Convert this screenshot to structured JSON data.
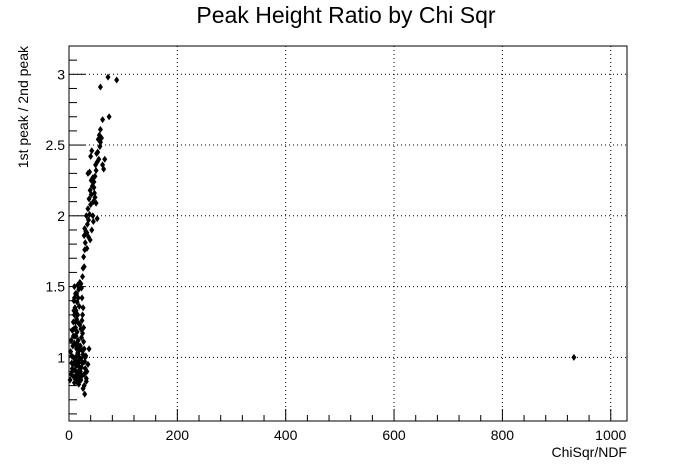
{
  "chart_data": {
    "type": "scatter",
    "title": "Peak Height Ratio by Chi Sqr",
    "xlabel": "ChiSqr/NDF",
    "ylabel": "1st peak / 2nd peak",
    "xlim": [
      0,
      1030
    ],
    "ylim": [
      0.55,
      3.2
    ],
    "grid": true,
    "grid_style": "dotted",
    "marker": "diamond",
    "marker_color": "#000000",
    "x_ticks": [
      0,
      200,
      400,
      600,
      800,
      1000
    ],
    "x_tick_labels": [
      "0",
      "200",
      "400",
      "600",
      "800",
      "1000"
    ],
    "y_ticks": [
      1,
      1.5,
      2,
      2.5,
      3
    ],
    "y_tick_labels": [
      "1",
      "1.5",
      "2",
      "2.5",
      "3"
    ],
    "points": [
      [
        2,
        0.84
      ],
      [
        4,
        0.88
      ],
      [
        6,
        0.92
      ],
      [
        5,
        0.96
      ],
      [
        8,
        1.0
      ],
      [
        3,
        1.04
      ],
      [
        7,
        1.08
      ],
      [
        4,
        1.12
      ],
      [
        9,
        0.86
      ],
      [
        6,
        0.9
      ],
      [
        10,
        0.82
      ],
      [
        12,
        0.85
      ],
      [
        14,
        0.88
      ],
      [
        11,
        0.91
      ],
      [
        13,
        0.94
      ],
      [
        15,
        0.97
      ],
      [
        12,
        1.0
      ],
      [
        16,
        1.03
      ],
      [
        14,
        1.06
      ],
      [
        11,
        1.09
      ],
      [
        17,
        1.12
      ],
      [
        13,
        1.15
      ],
      [
        15,
        1.18
      ],
      [
        12,
        1.21
      ],
      [
        18,
        1.24
      ],
      [
        14,
        1.27
      ],
      [
        16,
        1.3
      ],
      [
        13,
        1.33
      ],
      [
        19,
        1.36
      ],
      [
        15,
        1.39
      ],
      [
        17,
        1.42
      ],
      [
        14,
        1.45
      ],
      [
        18,
        1.48
      ],
      [
        16,
        1.51
      ],
      [
        20,
        1.53
      ],
      [
        22,
        0.84
      ],
      [
        24,
        0.87
      ],
      [
        21,
        0.9
      ],
      [
        23,
        0.93
      ],
      [
        25,
        0.96
      ],
      [
        22,
        0.99
      ],
      [
        26,
        1.02
      ],
      [
        24,
        1.05
      ],
      [
        21,
        1.08
      ],
      [
        27,
        1.11
      ],
      [
        23,
        1.14
      ],
      [
        25,
        1.17
      ],
      [
        22,
        1.2
      ],
      [
        20,
        1.23
      ],
      [
        24,
        1.26
      ],
      [
        18,
        0.81
      ],
      [
        19,
        0.84
      ],
      [
        20,
        0.87
      ],
      [
        17,
        0.9
      ],
      [
        19,
        0.93
      ],
      [
        18,
        0.96
      ],
      [
        20,
        0.99
      ],
      [
        17,
        1.02
      ],
      [
        19,
        1.05
      ],
      [
        18,
        1.08
      ],
      [
        10,
        1.1
      ],
      [
        11,
        1.15
      ],
      [
        9,
        1.2
      ],
      [
        12,
        1.25
      ],
      [
        10,
        1.3
      ],
      [
        11,
        1.35
      ],
      [
        9,
        1.4
      ],
      [
        12,
        1.45
      ],
      [
        10,
        1.5
      ],
      [
        8,
        1.15
      ],
      [
        28,
        0.88
      ],
      [
        30,
        0.92
      ],
      [
        32,
        0.85
      ],
      [
        29,
        0.97
      ],
      [
        31,
        1.01
      ],
      [
        33,
        0.9
      ],
      [
        28,
        1.06
      ],
      [
        35,
        0.95
      ],
      [
        30,
        1.0
      ],
      [
        26,
        0.78
      ],
      [
        29,
        0.74
      ],
      [
        27,
        1.21
      ],
      [
        25,
        1.3
      ],
      [
        26,
        1.35
      ],
      [
        24,
        1.42
      ],
      [
        23,
        1.49
      ],
      [
        22,
        1.52
      ],
      [
        37,
        1.06
      ],
      [
        32,
        0.83
      ],
      [
        28,
        0.8
      ],
      [
        8,
        1.25
      ],
      [
        7,
        0.95
      ],
      [
        5,
        1.01
      ],
      [
        6,
        1.19
      ],
      [
        9,
        1.33
      ],
      [
        10,
        1.42
      ],
      [
        11,
        0.97
      ],
      [
        14,
        0.83
      ],
      [
        16,
        0.86
      ],
      [
        15,
        1.1
      ],
      [
        25,
        1.57
      ],
      [
        26,
        1.63
      ],
      [
        28,
        1.64
      ],
      [
        27,
        1.71
      ],
      [
        29,
        1.76
      ],
      [
        30,
        1.81
      ],
      [
        28,
        1.86
      ],
      [
        31,
        1.89
      ],
      [
        29,
        1.91
      ],
      [
        33,
        1.88
      ],
      [
        34,
        1.94
      ],
      [
        36,
        1.97
      ],
      [
        32,
        2.0
      ],
      [
        38,
        2.01
      ],
      [
        35,
        2.05
      ],
      [
        40,
        2.08
      ],
      [
        37,
        2.12
      ],
      [
        41,
        2.15
      ],
      [
        39,
        2.18
      ],
      [
        43,
        2.21
      ],
      [
        36,
        1.85
      ],
      [
        39,
        1.83
      ],
      [
        42,
        1.9
      ],
      [
        44,
        2.0
      ],
      [
        45,
        2.1
      ],
      [
        47,
        2.16
      ],
      [
        46,
        2.24
      ],
      [
        48,
        2.28
      ],
      [
        50,
        2.32
      ],
      [
        49,
        2.36
      ],
      [
        52,
        2.38
      ],
      [
        55,
        2.4
      ],
      [
        51,
        2.44
      ],
      [
        53,
        2.45
      ],
      [
        57,
        2.49
      ],
      [
        54,
        2.54
      ],
      [
        56,
        2.57
      ],
      [
        58,
        2.52
      ],
      [
        62,
        2.36
      ],
      [
        64,
        2.33
      ],
      [
        40,
        2.42
      ],
      [
        42,
        2.46
      ],
      [
        38,
        2.31
      ],
      [
        44,
        2.27
      ],
      [
        41,
        2.25
      ],
      [
        46,
        2.2
      ],
      [
        48,
        2.13
      ],
      [
        50,
        2.09
      ],
      [
        52,
        1.98
      ],
      [
        35,
        2.3
      ],
      [
        58,
        2.61
      ],
      [
        62,
        2.68
      ],
      [
        74,
        2.7
      ],
      [
        58,
        2.91
      ],
      [
        72,
        2.98
      ],
      [
        88,
        2.96
      ],
      [
        60,
        2.55
      ],
      [
        66,
        2.4
      ],
      [
        45,
        1.96
      ],
      [
        33,
        1.77
      ],
      [
        932,
        1.0
      ]
    ]
  }
}
